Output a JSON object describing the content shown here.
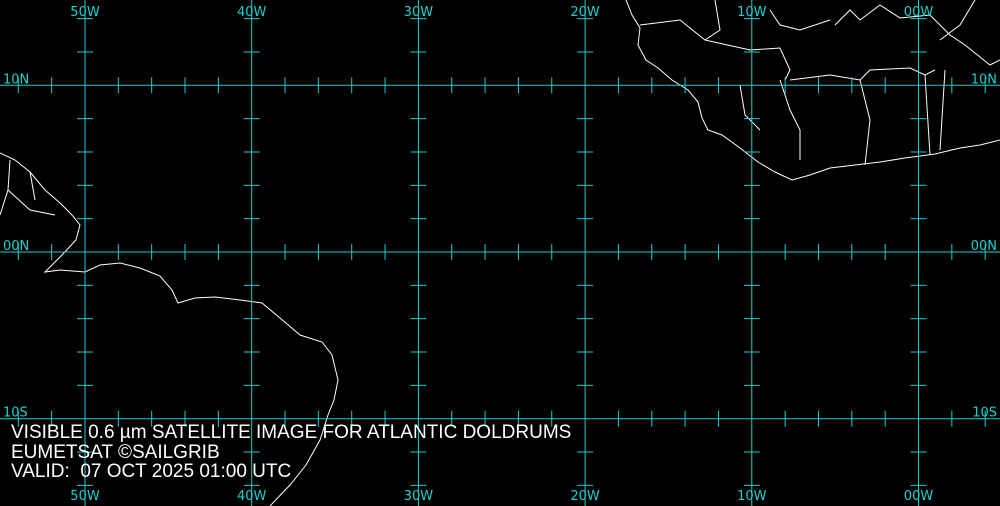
{
  "map": {
    "colors": {
      "background": "#000000",
      "grid": "#19d0d0",
      "coast": "#ffffff"
    },
    "longitudes": [
      {
        "value": -50,
        "label": "50W"
      },
      {
        "value": -40,
        "label": "40W"
      },
      {
        "value": -30,
        "label": "30W"
      },
      {
        "value": -20,
        "label": "20W"
      },
      {
        "value": -10,
        "label": "10W"
      },
      {
        "value": 0,
        "label": "00W"
      }
    ],
    "latitudes": [
      {
        "value": 10,
        "label": "10N"
      },
      {
        "value": 0,
        "label": "00N"
      },
      {
        "value": -10,
        "label": "10S"
      }
    ],
    "tick_interval_deg": 2
  },
  "caption": {
    "line1": "VISIBLE 0.6 µm SATELLITE IMAGE FOR ATLANTIC DOLDRUMS",
    "line2": "EUMETSAT ©SAILGRIB",
    "line3": "VALID:  07 OCT 2025 01:00 UTC"
  }
}
